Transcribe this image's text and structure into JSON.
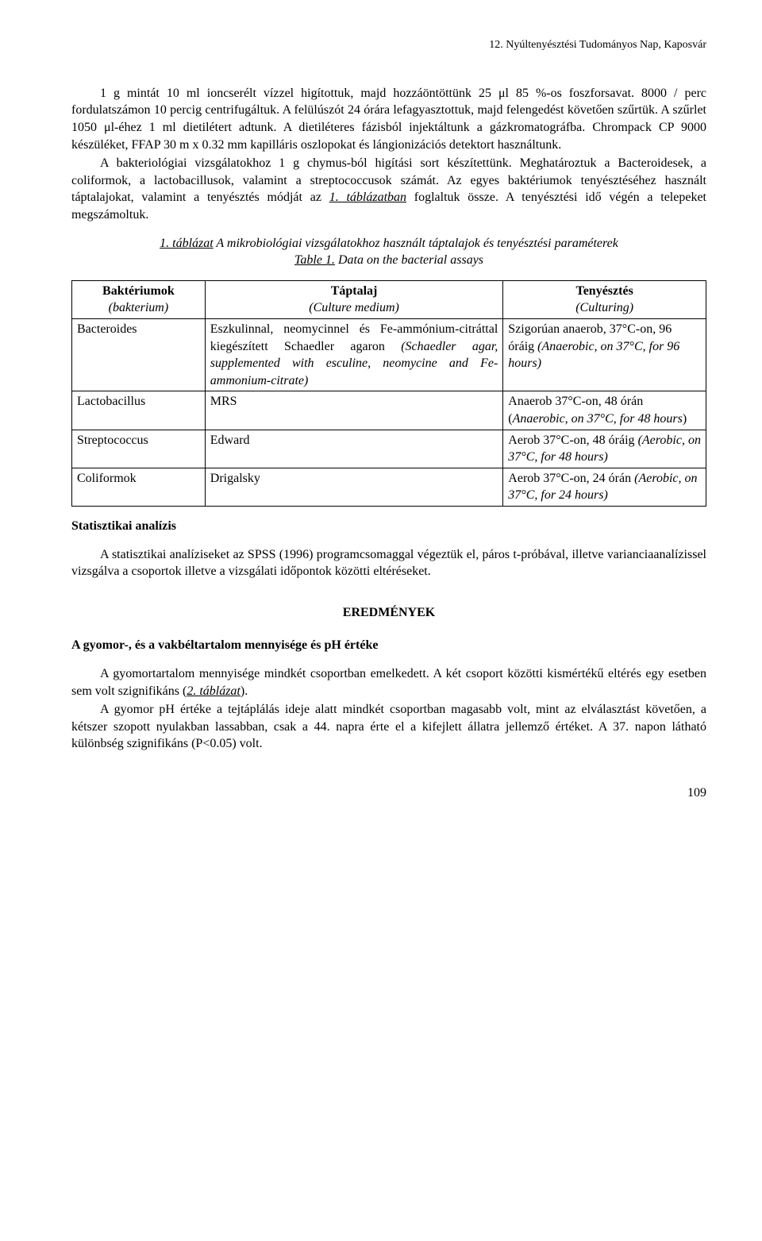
{
  "header": {
    "running": "12. Nyúltenyésztési Tudományos Nap, Kaposvár"
  },
  "body": {
    "p1_a": "1 g mintát 10 ml ioncserélt vízzel higítottuk, majd hozzáöntöttünk 25 μl 85 %-os foszforsavat. 8000 / perc fordulatszámon 10 percig centrifugáltuk. A felülúszót 24 órára lefagyasztottuk, majd felengedést követően szűrtük. A szűrlet 1050 μl-éhez 1 ml dietilétert adtunk. A dietiléteres fázisból injektáltunk a gázkromatográfba. Chrompack CP 9000 készüléket, FFAP 30 m x 0.32 mm kapilláris oszlopokat és lángionizációs detektort használtunk.",
    "p1_b": "A bakteriológiai vizsgálatokhoz 1 g chymus-ból higítási sort készítettünk. Meghatároztuk a Bacteroidesek, a coliformok, a lactobacillusok, valamint a streptococcusok számát. Az egyes baktériumok tenyésztéséhez használt táptalajokat, valamint a tenyésztés módját az ",
    "p1_b_u": "1. táblázatban",
    "p1_b_tail": " foglaltuk össze. A tenyésztési idő végén a telepeket megszámoltuk."
  },
  "caption1": {
    "line1_u": "1. táblázat",
    "line1_rest": " A mikrobiológiai vizsgálatokhoz használt táptalajok és tenyésztési paraméterek",
    "line2_u": "Table 1.",
    "line2_rest": " Data on the bacterial assays"
  },
  "table1": {
    "head": {
      "c1_b": "Baktériumok",
      "c1_i": "(bakterium)",
      "c2_b": "Táptalaj",
      "c2_i": "(Culture medium)",
      "c3_b": "Tenyésztés",
      "c3_i": "(Culturing)"
    },
    "rows": [
      {
        "c1": "Bacteroides",
        "c2": "Eszkulinnal, neomycinnel és Fe-ammónium-citráttal kiegészített Schaedler agaron <i>(Schaedler agar, supplemented with esculine, neomycine and Fe-ammonium-citrate)</i>",
        "c3": "Szigorúan anaerob, 37°C-on, 96 óráig <i>(Anaerobic, on 37°C, for 96 hours)</i>"
      },
      {
        "c1": "Lactobacillus",
        "c2": "MRS",
        "c3": "Anaerob 37°C-on, 48 órán (<i>Anaerobic, on 37°C, for 48 hours</i>)"
      },
      {
        "c1": "Streptococcus",
        "c2": "Edward",
        "c3": "Aerob 37°C-on, 48 óráig <i>(Aerobic, on 37°C, for 48 hours)</i>"
      },
      {
        "c1": "Coliformok",
        "c2": "Drigalsky",
        "c3": "Aerob 37°C-on, 24 órán <i>(Aerobic, on 37°C, for 24 hours)</i>"
      }
    ],
    "col_widths": [
      "21%",
      "47%",
      "32%"
    ]
  },
  "stats": {
    "head": "Statisztikai analízis",
    "p": "A statisztikai analíziseket az SPSS (1996) programcsomaggal végeztük el, páros t-próbával, illetve varianciaanalízissel vizsgálva a csoportok illetve a vizsgálati időpontok közötti eltéréseket."
  },
  "results": {
    "head": "EREDMÉNYEK",
    "sub": "A gyomor-, és a vakbéltartalom mennyisége és pH értéke",
    "p1_a": "A gyomortartalom mennyisége mindkét csoportban emelkedett. A két csoport közötti kismértékű eltérés egy esetben sem volt szignifikáns (",
    "p1_u": "2. táblázat",
    "p1_tail": ").",
    "p2": "A gyomor pH értéke a tejtáplálás ideje alatt mindkét csoportban magasabb volt, mint az elválasztást követően, a kétszer szopott nyulakban lassabban, csak a 44. napra érte el a kifejlett állatra jellemző értéket. A 37. napon látható különbség szignifikáns (P<0.05) volt."
  },
  "pagenum": "109"
}
